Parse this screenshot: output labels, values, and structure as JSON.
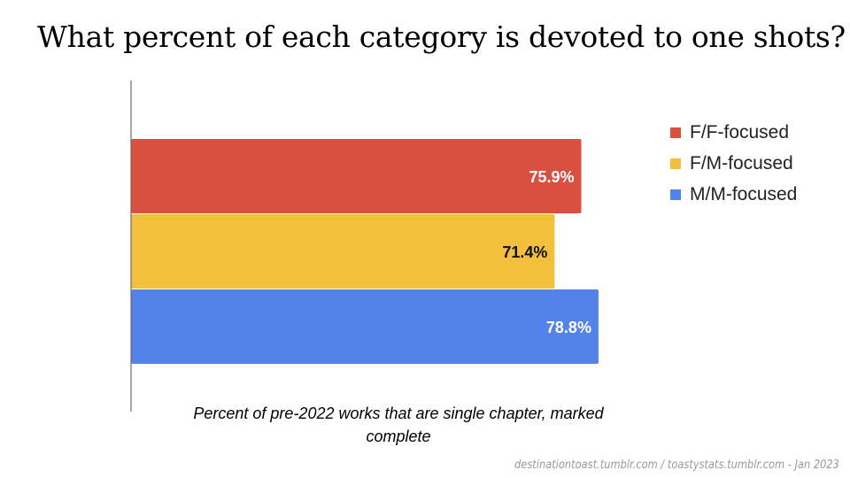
{
  "title": "What percent of each category is devoted to one shots?",
  "caption": "Percent of pre-2022 works that are single chapter, marked complete",
  "footer": "destinationtoast.tumblr.com / toastystats.tumblr.com - Jan 2023",
  "chart_data": {
    "type": "bar",
    "orientation": "horizontal",
    "title": "What percent of each category is devoted to one shots?",
    "xlabel": "Percent of pre-2022 works that are single chapter, marked complete",
    "ylabel": "",
    "xlim": [
      0,
      100
    ],
    "grid": false,
    "legend_position": "right",
    "series": [
      {
        "name": "F/F-focused",
        "value": 75.9,
        "label": "75.9%",
        "color": "#d95041",
        "label_color": "#ffffff"
      },
      {
        "name": "F/M-focused",
        "value": 71.4,
        "label": "71.4%",
        "color": "#f2c03d",
        "label_color": "#111111"
      },
      {
        "name": "M/M-focused",
        "value": 78.8,
        "label": "78.8%",
        "color": "#5283e8",
        "label_color": "#ffffff"
      }
    ]
  }
}
